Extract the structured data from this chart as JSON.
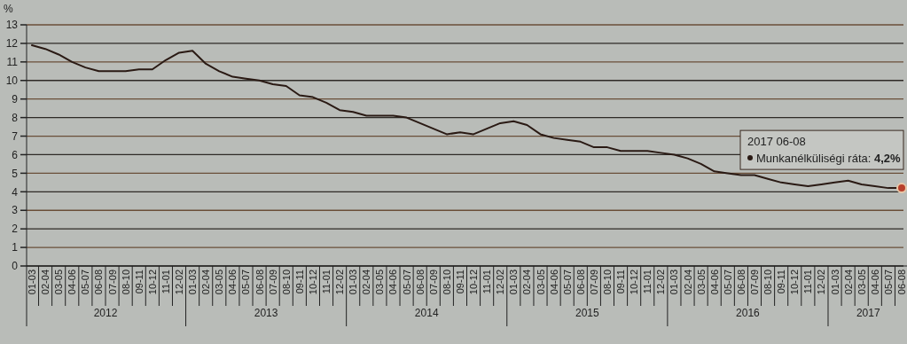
{
  "chart_data": {
    "type": "line",
    "ylabel": "%",
    "categories": [
      "01-03",
      "02-04",
      "03-05",
      "04-06",
      "05-07",
      "06-08",
      "07-09",
      "08-10",
      "09-11",
      "10-12",
      "11-01",
      "12-02",
      "01-03",
      "02-04",
      "03-05",
      "04-06",
      "05-07",
      "06-08",
      "07-09",
      "08-10",
      "09-11",
      "10-12",
      "11-01",
      "12-02",
      "01-03",
      "02-04",
      "03-05",
      "04-06",
      "05-07",
      "06-08",
      "07-09",
      "08-10",
      "09-11",
      "10-12",
      "11-01",
      "12-02",
      "01-03",
      "02-04",
      "03-05",
      "04-06",
      "05-07",
      "06-08",
      "07-09",
      "08-10",
      "09-11",
      "10-12",
      "11-01",
      "12-02",
      "01-03",
      "02-04",
      "03-05",
      "04-06",
      "05-07",
      "06-08",
      "07-09",
      "08-10",
      "09-11",
      "10-12",
      "11-01",
      "12-02",
      "01-03",
      "02-04",
      "03-05",
      "04-06",
      "05-07",
      "06-08"
    ],
    "series": [
      {
        "name": "Munkanélküliségi ráta:",
        "color": "#2a1a14",
        "values": [
          11.9,
          11.7,
          11.4,
          11.0,
          10.7,
          10.5,
          10.5,
          10.5,
          10.6,
          10.6,
          11.1,
          11.5,
          11.6,
          10.9,
          10.5,
          10.2,
          10.1,
          10.0,
          9.8,
          9.7,
          9.2,
          9.1,
          8.8,
          8.4,
          8.3,
          8.1,
          8.1,
          8.1,
          8.0,
          7.7,
          7.4,
          7.1,
          7.2,
          7.1,
          7.4,
          7.7,
          7.8,
          7.6,
          7.1,
          6.9,
          6.8,
          6.7,
          6.4,
          6.4,
          6.2,
          6.2,
          6.2,
          6.1,
          6.0,
          5.8,
          5.5,
          5.1,
          5.0,
          4.9,
          4.9,
          4.7,
          4.5,
          4.4,
          4.3,
          4.4,
          4.5,
          4.6,
          4.4,
          4.3,
          4.2,
          4.2
        ],
        "value_labels": [
          null,
          null,
          null,
          null,
          null,
          null,
          null,
          null,
          null,
          null,
          null,
          null,
          null,
          null,
          null,
          null,
          null,
          null,
          null,
          null,
          null,
          null,
          null,
          null,
          null,
          null,
          null,
          null,
          null,
          null,
          null,
          null,
          null,
          null,
          null,
          null,
          null,
          null,
          null,
          null,
          null,
          null,
          null,
          null,
          null,
          null,
          null,
          null,
          null,
          null,
          null,
          null,
          null,
          null,
          null,
          null,
          null,
          null,
          null,
          null,
          null,
          null,
          null,
          null,
          null,
          "4,2%"
        ]
      }
    ],
    "ylim": [
      0,
      13
    ],
    "yticks": [
      0,
      1,
      2,
      3,
      4,
      5,
      6,
      7,
      8,
      9,
      10,
      11,
      12,
      13
    ],
    "grid": "y",
    "marker": "none",
    "line_style": "solid",
    "annotations": [
      "2012",
      "2013",
      "2014",
      "2015",
      "2016",
      "2017",
      "2017 06-08"
    ]
  }
}
